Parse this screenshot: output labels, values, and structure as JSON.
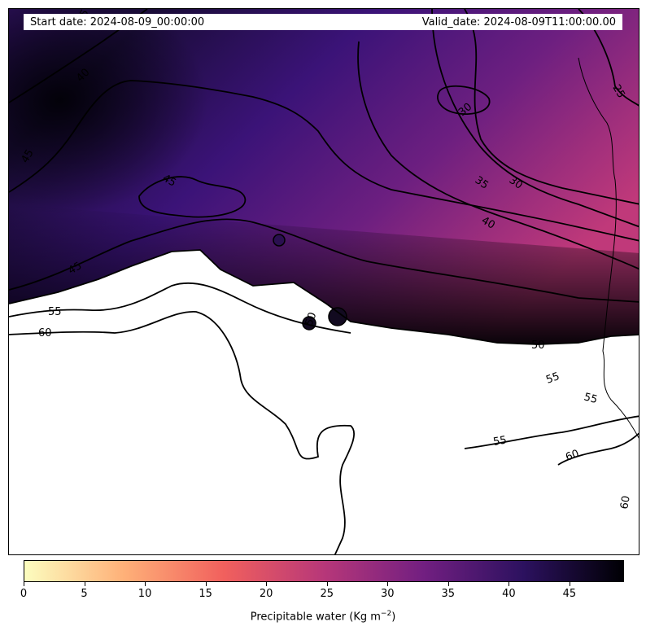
{
  "header": {
    "start_date": "Start date: 2024-08-09_00:00:00",
    "valid_date": "Valid_date: 2024-08-09T11:00:00.00"
  },
  "colorbar": {
    "label_prefix": "Precipitable water (Kg m",
    "label_exponent": "−2",
    "label_suffix": ")",
    "vmin": 0,
    "vmax": 49.5,
    "ticks": [
      "0",
      "5",
      "10",
      "15",
      "20",
      "25",
      "30",
      "35",
      "40",
      "45"
    ],
    "colormap": "magma_r",
    "colors": [
      "#fcfdbf",
      "#feb078",
      "#f1605d",
      "#b73779",
      "#721f81",
      "#2c115f",
      "#000004"
    ]
  },
  "contour_labels": [
    "25",
    "30",
    "30",
    "35",
    "35",
    "40",
    "40",
    "45",
    "45",
    "45",
    "50",
    "50",
    "55",
    "55",
    "55",
    "55",
    "60",
    "60",
    "60"
  ]
}
